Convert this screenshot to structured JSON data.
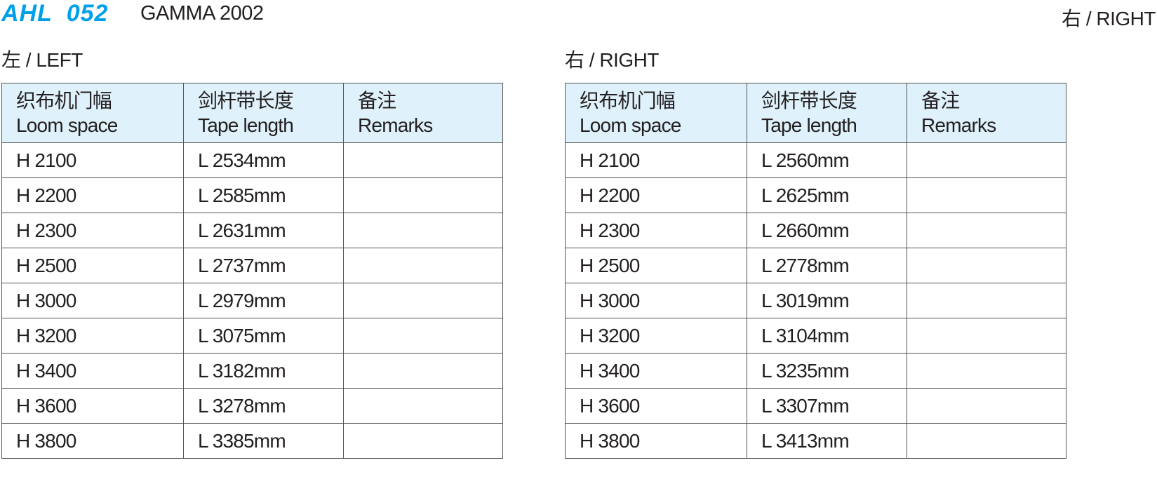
{
  "header": {
    "model": "AHL  052",
    "series": "GAMMA 2002",
    "corner_label": "右 / RIGHT"
  },
  "left": {
    "label": "左 / LEFT",
    "columns": [
      {
        "zh": "织布机门幅",
        "en": "Loom space"
      },
      {
        "zh": "剑杆带长度",
        "en": "Tape length"
      },
      {
        "zh": "备注",
        "en": "Remarks"
      }
    ],
    "rows": [
      [
        "H 2100",
        "L 2534mm",
        ""
      ],
      [
        "H 2200",
        "L 2585mm",
        ""
      ],
      [
        "H 2300",
        "L 2631mm",
        ""
      ],
      [
        "H 2500",
        "L 2737mm",
        ""
      ],
      [
        "H 3000",
        "L 2979mm",
        ""
      ],
      [
        "H 3200",
        "L 3075mm",
        ""
      ],
      [
        "H 3400",
        "L 3182mm",
        ""
      ],
      [
        "H 3600",
        "L 3278mm",
        ""
      ],
      [
        "H 3800",
        "L 3385mm",
        ""
      ]
    ]
  },
  "right": {
    "label": "右 / RIGHT",
    "columns": [
      {
        "zh": "织布机门幅",
        "en": "Loom space"
      },
      {
        "zh": "剑杆带长度",
        "en": "Tape length"
      },
      {
        "zh": "备注",
        "en": "Remarks"
      }
    ],
    "rows": [
      [
        "H 2100",
        "L 2560mm",
        ""
      ],
      [
        "H 2200",
        "L 2625mm",
        ""
      ],
      [
        "H 2300",
        "L 2660mm",
        ""
      ],
      [
        "H 2500",
        "L 2778mm",
        ""
      ],
      [
        "H 3000",
        "L 3019mm",
        ""
      ],
      [
        "H 3200",
        "L 3104mm",
        ""
      ],
      [
        "H 3400",
        "L 3235mm",
        ""
      ],
      [
        "H 3600",
        "L 3307mm",
        ""
      ],
      [
        "H 3800",
        "L 3413mm",
        ""
      ]
    ]
  },
  "colors": {
    "accent": "#00a0e9",
    "header_bg": "#dff1fb"
  }
}
